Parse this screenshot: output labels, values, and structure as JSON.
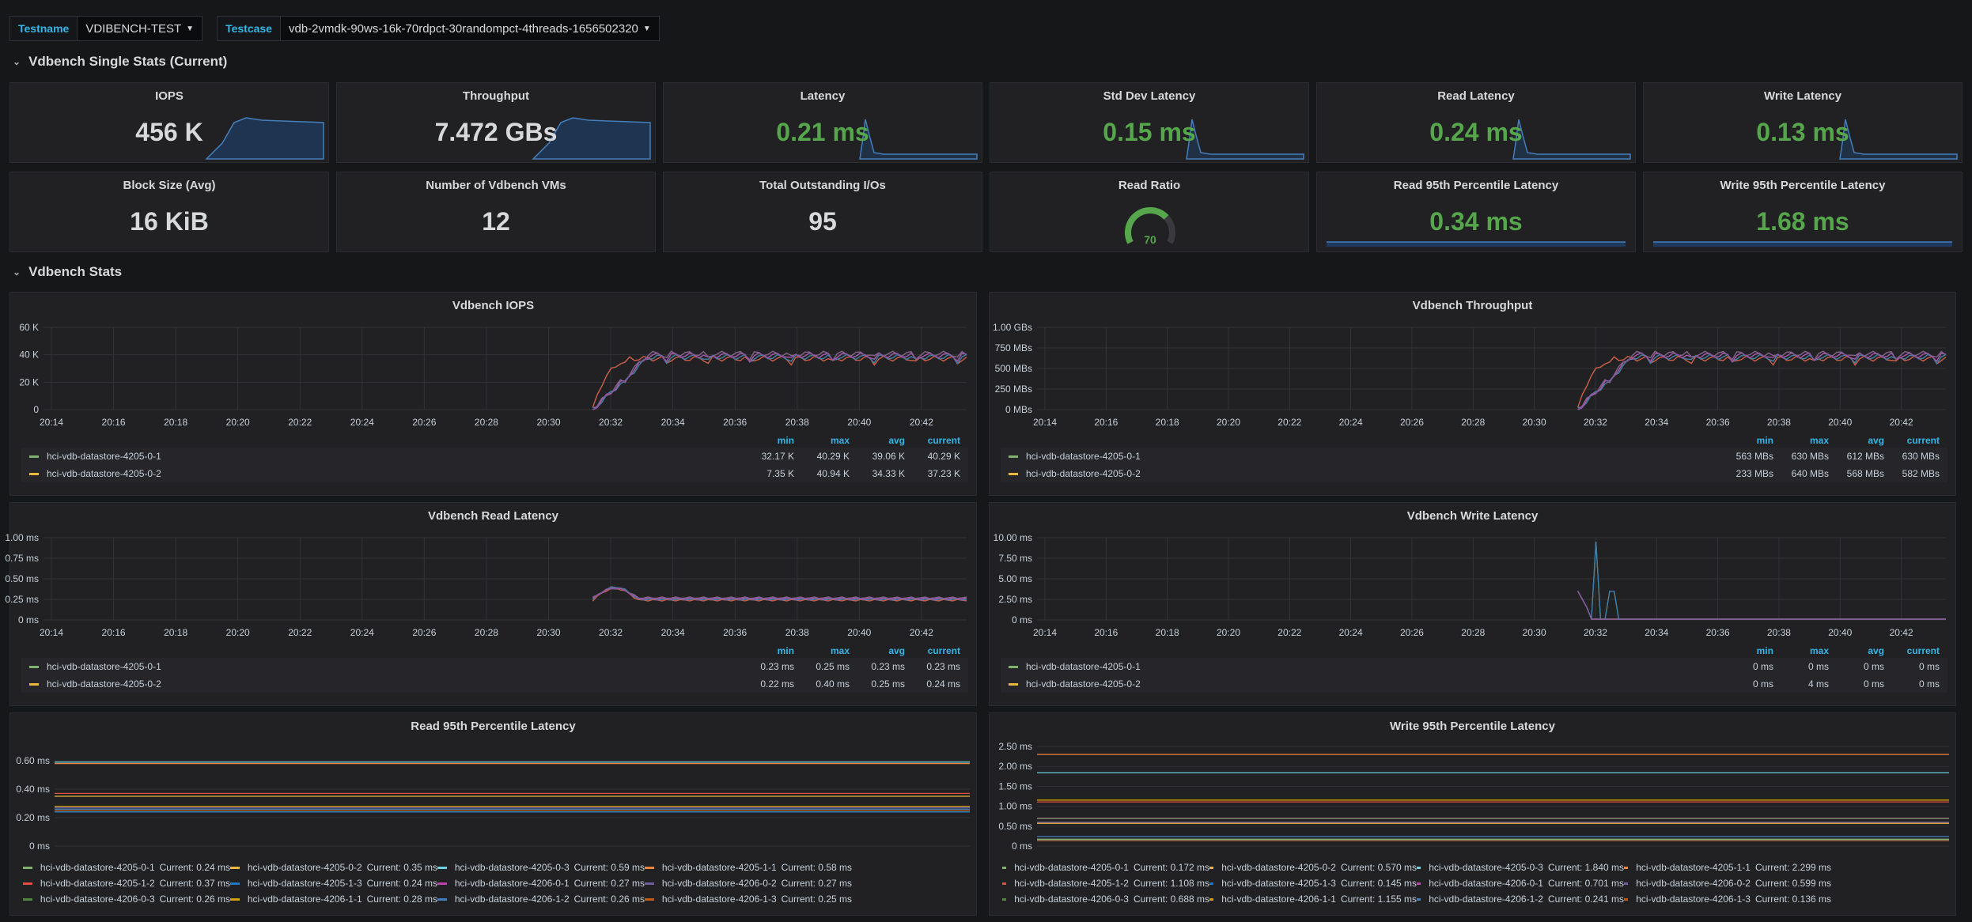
{
  "variables": [
    {
      "label": "Testname",
      "value": "VDIBENCH-TEST"
    },
    {
      "label": "Testcase",
      "value": "vdb-2vmdk-90ws-16k-70rdpct-30randompct-4threads-1656502320"
    }
  ],
  "rows": {
    "single": "Vdbench Single Stats (Current)",
    "stats": "Vdbench Stats"
  },
  "stats": [
    {
      "title": "IOPS",
      "value": "456 K",
      "color": "white",
      "spark": "area"
    },
    {
      "title": "Throughput",
      "value": "7.472 GBs",
      "color": "white",
      "spark": "area"
    },
    {
      "title": "Latency",
      "value": "0.21 ms",
      "color": "green",
      "spark": "spike"
    },
    {
      "title": "Std Dev Latency",
      "value": "0.15 ms",
      "color": "green",
      "spark": "spike"
    },
    {
      "title": "Read Latency",
      "value": "0.24 ms",
      "color": "green",
      "spark": "spike"
    },
    {
      "title": "Write Latency",
      "value": "0.13 ms",
      "color": "green",
      "spark": "spike"
    },
    {
      "title": "Block Size (Avg)",
      "value": "16 KiB",
      "color": "white",
      "spark": "none"
    },
    {
      "title": "Number of Vdbench VMs",
      "value": "12",
      "color": "white",
      "spark": "none"
    },
    {
      "title": "Total Outstanding I/Os",
      "value": "95",
      "color": "white",
      "spark": "none"
    },
    {
      "title": "Read Ratio",
      "value": "70",
      "color": "gauge",
      "spark": "gauge",
      "gauge_fraction": 0.7
    },
    {
      "title": "Read 95th Percentile Latency",
      "value": "0.34 ms",
      "color": "green",
      "spark": "flat"
    },
    {
      "title": "Write 95th Percentile Latency",
      "value": "1.68 ms",
      "color": "green",
      "spark": "flat"
    }
  ],
  "time_ticks": [
    "20:14",
    "20:16",
    "20:18",
    "20:20",
    "20:22",
    "20:24",
    "20:26",
    "20:28",
    "20:30",
    "20:32",
    "20:34",
    "20:36",
    "20:38",
    "20:40",
    "20:42"
  ],
  "legend_headers": [
    "min",
    "max",
    "avg",
    "current"
  ],
  "graphs": [
    {
      "title": "Vdbench IOPS",
      "y_ticks": [
        "60 K",
        "40 K",
        "20 K",
        "0"
      ],
      "shape": "ramp",
      "series": [
        {
          "name": "hci-vdb-datastore-4205-0-1",
          "color": "#7eb26d",
          "min": "32.17 K",
          "max": "40.29 K",
          "avg": "39.06 K",
          "current": "40.29 K"
        },
        {
          "name": "hci-vdb-datastore-4205-0-2",
          "color": "#eab839",
          "min": "7.35 K",
          "max": "40.94 K",
          "avg": "34.33 K",
          "current": "37.23 K"
        }
      ]
    },
    {
      "title": "Vdbench Throughput",
      "y_ticks": [
        "1.00 GBs",
        "750 MBs",
        "500 MBs",
        "250 MBs",
        "0 MBs"
      ],
      "shape": "ramp",
      "series": [
        {
          "name": "hci-vdb-datastore-4205-0-1",
          "color": "#7eb26d",
          "min": "563 MBs",
          "max": "630 MBs",
          "avg": "612 MBs",
          "current": "630 MBs"
        },
        {
          "name": "hci-vdb-datastore-4205-0-2",
          "color": "#eab839",
          "min": "233 MBs",
          "max": "640 MBs",
          "avg": "568 MBs",
          "current": "582 MBs"
        }
      ]
    },
    {
      "title": "Vdbench Read Latency",
      "y_ticks": [
        "1.00 ms",
        "0.75 ms",
        "0.50 ms",
        "0.25 ms",
        "0 ms"
      ],
      "shape": "bump",
      "series": [
        {
          "name": "hci-vdb-datastore-4205-0-1",
          "color": "#7eb26d",
          "min": "0.23 ms",
          "max": "0.25 ms",
          "avg": "0.23 ms",
          "current": "0.23 ms"
        },
        {
          "name": "hci-vdb-datastore-4205-0-2",
          "color": "#eab839",
          "min": "0.22 ms",
          "max": "0.40 ms",
          "avg": "0.25 ms",
          "current": "0.24 ms"
        }
      ]
    },
    {
      "title": "Vdbench Write Latency",
      "y_ticks": [
        "10.00 ms",
        "7.50 ms",
        "5.00 ms",
        "2.50 ms",
        "0 ms"
      ],
      "shape": "spike",
      "series": [
        {
          "name": "hci-vdb-datastore-4205-0-1",
          "color": "#7eb26d",
          "min": "0 ms",
          "max": "0 ms",
          "avg": "0 ms",
          "current": "0 ms"
        },
        {
          "name": "hci-vdb-datastore-4205-0-2",
          "color": "#eab839",
          "min": "0 ms",
          "max": "4 ms",
          "avg": "0 ms",
          "current": "0 ms"
        }
      ]
    }
  ],
  "p95": [
    {
      "title": "Read 95th Percentile Latency",
      "y_ticks": [
        "0.60 ms",
        "0.40 ms",
        "0.20 ms",
        "0 ms"
      ],
      "y_max": 0.7,
      "series": [
        {
          "name": "hci-vdb-datastore-4205-0-1",
          "color": "#7eb26d",
          "current": "Current: 0.24 ms",
          "value": 0.24
        },
        {
          "name": "hci-vdb-datastore-4205-0-2",
          "color": "#eab839",
          "current": "Current: 0.35 ms",
          "value": 0.35
        },
        {
          "name": "hci-vdb-datastore-4205-0-3",
          "color": "#6ed0e0",
          "current": "Current: 0.59 ms",
          "value": 0.59
        },
        {
          "name": "hci-vdb-datastore-4205-1-1",
          "color": "#ef843c",
          "current": "Current: 0.58 ms",
          "value": 0.58
        },
        {
          "name": "hci-vdb-datastore-4205-1-2",
          "color": "#e24d42",
          "current": "Current: 0.37 ms",
          "value": 0.37
        },
        {
          "name": "hci-vdb-datastore-4205-1-3",
          "color": "#1f78c1",
          "current": "Current: 0.24 ms",
          "value": 0.24
        },
        {
          "name": "hci-vdb-datastore-4206-0-1",
          "color": "#ba43a9",
          "current": "Current: 0.27 ms",
          "value": 0.27
        },
        {
          "name": "hci-vdb-datastore-4206-0-2",
          "color": "#705da0",
          "current": "Current: 0.27 ms",
          "value": 0.27
        },
        {
          "name": "hci-vdb-datastore-4206-0-3",
          "color": "#508642",
          "current": "Current: 0.26 ms",
          "value": 0.26
        },
        {
          "name": "hci-vdb-datastore-4206-1-1",
          "color": "#cca300",
          "current": "Current: 0.28 ms",
          "value": 0.28
        },
        {
          "name": "hci-vdb-datastore-4206-1-2",
          "color": "#447ebc",
          "current": "Current: 0.26 ms",
          "value": 0.26
        },
        {
          "name": "hci-vdb-datastore-4206-1-3",
          "color": "#c15c17",
          "current": "Current: 0.25 ms",
          "value": 0.25
        }
      ]
    },
    {
      "title": "Write 95th Percentile Latency",
      "y_ticks": [
        "2.50 ms",
        "2.00 ms",
        "1.50 ms",
        "1.00 ms",
        "0.50 ms",
        "0 ms"
      ],
      "y_max": 2.5,
      "series": [
        {
          "name": "hci-vdb-datastore-4205-0-1",
          "color": "#7eb26d",
          "current": "Current: 0.172 ms",
          "value": 0.172
        },
        {
          "name": "hci-vdb-datastore-4205-0-2",
          "color": "#eab839",
          "current": "Current: 0.570 ms",
          "value": 0.57
        },
        {
          "name": "hci-vdb-datastore-4205-0-3",
          "color": "#6ed0e0",
          "current": "Current: 1.840 ms",
          "value": 1.84
        },
        {
          "name": "hci-vdb-datastore-4205-1-1",
          "color": "#ef843c",
          "current": "Current: 2.299 ms",
          "value": 2.299
        },
        {
          "name": "hci-vdb-datastore-4205-1-2",
          "color": "#e24d42",
          "current": "Current: 1.108 ms",
          "value": 1.108
        },
        {
          "name": "hci-vdb-datastore-4205-1-3",
          "color": "#1f78c1",
          "current": "Current: 0.145 ms",
          "value": 0.145
        },
        {
          "name": "hci-vdb-datastore-4206-0-1",
          "color": "#ba43a9",
          "current": "Current: 0.701 ms",
          "value": 0.701
        },
        {
          "name": "hci-vdb-datastore-4206-0-2",
          "color": "#705da0",
          "current": "Current: 0.599 ms",
          "value": 0.599
        },
        {
          "name": "hci-vdb-datastore-4206-0-3",
          "color": "#508642",
          "current": "Current: 0.688 ms",
          "value": 0.688
        },
        {
          "name": "hci-vdb-datastore-4206-1-1",
          "color": "#cca300",
          "current": "Current: 1.155 ms",
          "value": 1.155
        },
        {
          "name": "hci-vdb-datastore-4206-1-2",
          "color": "#447ebc",
          "current": "Current: 0.241 ms",
          "value": 0.241
        },
        {
          "name": "hci-vdb-datastore-4206-1-3",
          "color": "#c15c17",
          "current": "Current: 0.136 ms",
          "value": 0.136
        }
      ]
    }
  ]
}
